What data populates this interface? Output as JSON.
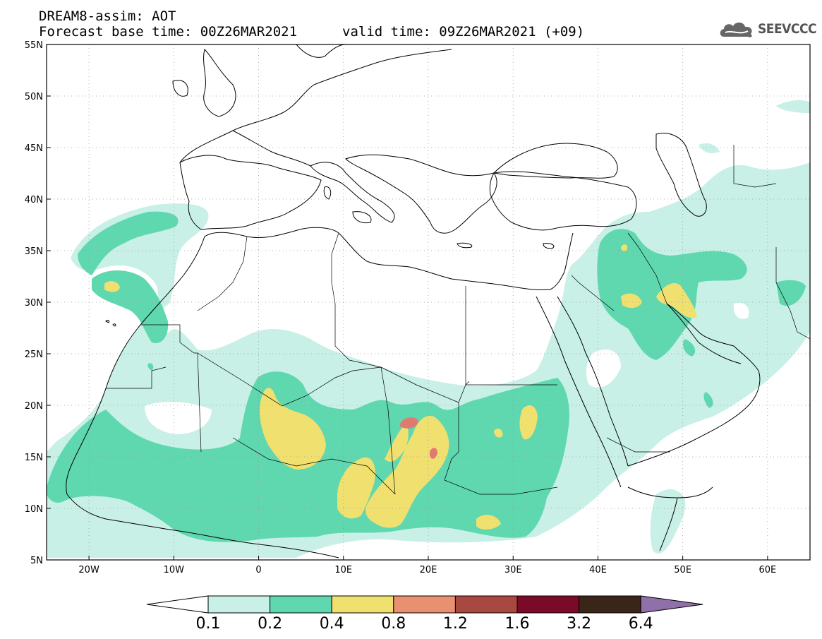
{
  "header": {
    "line1": "DREAM8-assim: AOT",
    "base_time": "Forecast base time: 00Z26MAR2021",
    "valid_time": "valid time: 09Z26MAR2021 (+09)",
    "logo_text": "SEEVCCC",
    "logo_icon": "cloud-icon"
  },
  "map": {
    "lon_range": [
      -25,
      65
    ],
    "lat_range": [
      5,
      55
    ],
    "lat_labels": [
      {
        "lat": 55,
        "label": "55N"
      },
      {
        "lat": 50,
        "label": "50N"
      },
      {
        "lat": 45,
        "label": "45N"
      },
      {
        "lat": 40,
        "label": "40N"
      },
      {
        "lat": 35,
        "label": "35N"
      },
      {
        "lat": 30,
        "label": "30N"
      },
      {
        "lat": 25,
        "label": "25N"
      },
      {
        "lat": 20,
        "label": "20N"
      },
      {
        "lat": 15,
        "label": "15N"
      },
      {
        "lat": 10,
        "label": "10N"
      },
      {
        "lat": 5,
        "label": "5N"
      }
    ],
    "lon_labels": [
      {
        "lon": -20,
        "label": "20W"
      },
      {
        "lon": -10,
        "label": "10W"
      },
      {
        "lon": 0,
        "label": "0"
      },
      {
        "lon": 10,
        "label": "10E"
      },
      {
        "lon": 20,
        "label": "20E"
      },
      {
        "lon": 30,
        "label": "30E"
      },
      {
        "lon": 40,
        "label": "40E"
      },
      {
        "lon": 50,
        "label": "50E"
      },
      {
        "lon": 60,
        "label": "60E"
      }
    ],
    "grid": true,
    "colors": {
      "c1": "#c8f0e6",
      "c2": "#5fd8b0",
      "c3": "#f0e070",
      "c4": "#e07a70",
      "coast": "#000000"
    }
  },
  "colorbar": {
    "colors": [
      "#c8f0e6",
      "#5fd8b0",
      "#f0e070",
      "#e89070",
      "#a84840",
      "#7a0a28",
      "#3a2618",
      "#9070a8"
    ],
    "labels": [
      "0.1",
      "0.2",
      "0.4",
      "0.8",
      "1.2",
      "1.6",
      "3.2",
      "6.4"
    ]
  }
}
